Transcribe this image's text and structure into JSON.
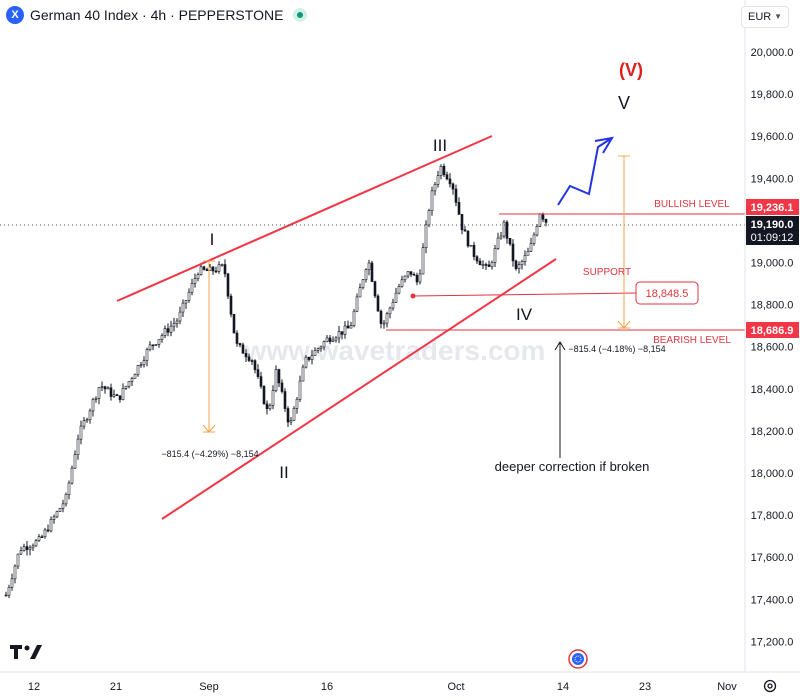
{
  "header": {
    "symbol_logo": "X",
    "title": "German 40 Index · 4h · PEPPERSTONE"
  },
  "currency": "EUR",
  "chart_data": {
    "type": "candlestick",
    "title": "German 40 Index · 4h · PEPPERSTONE",
    "ylim": [
      17000,
      20250
    ],
    "y_ticks": [
      "17,200.0",
      "17,400.0",
      "17,600.0",
      "17,800.0",
      "18,000.0",
      "18,200.0",
      "18,400.0",
      "18,600.0",
      "18,800.0",
      "19,000.0",
      "19,200.0",
      "19,400.0",
      "19,600.0",
      "19,800.0",
      "20,000.0"
    ],
    "x_ticks": [
      "12",
      "21",
      "Sep",
      "16",
      "Oct",
      "14",
      "23",
      "Nov"
    ],
    "price_labels": {
      "bullish": "19,236.1",
      "current": "19,190.0",
      "countdown": "01:09:12",
      "bearish": "18,686.9"
    },
    "levels": {
      "bullish_label": "BULLISH LEVEL",
      "bearish_label": "BEARISH LEVEL",
      "support_label": "SUPPORT",
      "support_value": "18,848.5"
    },
    "wave_labels": {
      "I": "I",
      "II": "II",
      "III": "III",
      "IV": "IV",
      "V": "V",
      "V_big": "(V)"
    },
    "measurements": {
      "first": "−815.4 (−4.29%) −8,154",
      "second": "−815.4 (−4.18%) −8,154"
    },
    "annotation": "deeper correction if broken",
    "watermark": "www.wavetraders.com",
    "colors": {
      "up": "#089981",
      "down": "#f23645",
      "candle": "#131722",
      "channel": "#f23645",
      "level": "#e0353f",
      "measure": "#f5a34a",
      "projection": "#2433e0",
      "wave_big": "#e01e1e"
    }
  }
}
